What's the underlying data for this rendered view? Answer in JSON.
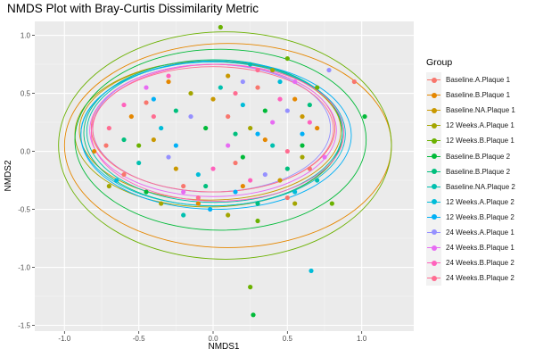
{
  "chart_data": {
    "type": "scatter",
    "title": "NMDS Plot with Bray-Curtis Dissimilarity Metric",
    "xlabel": "NMDS1",
    "ylabel": "NMDS2",
    "xlim": [
      -1.2,
      1.35
    ],
    "ylim": [
      -1.55,
      1.12
    ],
    "xticks": [
      "-1.0",
      "-0.5",
      "0.0",
      "0.5",
      "1.0"
    ],
    "xtick_values": [
      -1.0,
      -0.5,
      0.0,
      0.5,
      1.0
    ],
    "yticks": [
      "1.0",
      "0.5",
      "0.0",
      "-0.5",
      "-1.0",
      "-1.5"
    ],
    "ytick_values": [
      1.0,
      0.5,
      0.0,
      -0.5,
      -1.0,
      -1.5
    ],
    "grid": true,
    "legend_position": "right",
    "legend_title": "Group",
    "series": [
      {
        "name": "Baseline.A.Plaque 1",
        "color": "#F8766D",
        "ellipse": {
          "cx": 0.0,
          "cy": 0.2,
          "rx": 0.82,
          "ry": 0.55
        }
      },
      {
        "name": "Baseline.B.Plaque 1",
        "color": "#E58700",
        "ellipse": {
          "cx": 0.1,
          "cy": 0.05,
          "rx": 1.1,
          "ry": 0.88
        }
      },
      {
        "name": "Baseline.NA.Plaque 1",
        "color": "#C99800",
        "ellipse": {
          "cx": -0.02,
          "cy": 0.18,
          "rx": 0.88,
          "ry": 0.6
        }
      },
      {
        "name": "12 Weeks.A.Plaque 1",
        "color": "#A3A500",
        "ellipse": {
          "cx": -0.03,
          "cy": 0.15,
          "rx": 0.9,
          "ry": 0.63
        }
      },
      {
        "name": "12 Weeks.B.Plaque 1",
        "color": "#6BB100",
        "ellipse": {
          "cx": 0.08,
          "cy": 0.05,
          "rx": 1.12,
          "ry": 0.98
        }
      },
      {
        "name": "Baseline.B.Plaque 2",
        "color": "#00BA38",
        "ellipse": {
          "cx": 0.05,
          "cy": 0.1,
          "rx": 0.98,
          "ry": 0.78
        }
      },
      {
        "name": "Baseline.B.Plaque 2",
        "color": "#00BF7D",
        "ellipse": {
          "cx": 0.0,
          "cy": 0.16,
          "rx": 0.87,
          "ry": 0.63
        }
      },
      {
        "name": "Baseline.NA.Plaque 2",
        "color": "#00C0AF",
        "ellipse": {
          "cx": 0.01,
          "cy": 0.17,
          "rx": 0.86,
          "ry": 0.61
        }
      },
      {
        "name": "12 Weeks.A.Plaque 2",
        "color": "#00BCD8",
        "ellipse": {
          "cx": 0.0,
          "cy": 0.15,
          "rx": 0.89,
          "ry": 0.62
        }
      },
      {
        "name": "12 Weeks.B.Plaque 2",
        "color": "#00B0F6",
        "ellipse": {
          "cx": 0.02,
          "cy": 0.14,
          "rx": 0.91,
          "ry": 0.64
        }
      },
      {
        "name": "24 Weeks.A.Plaque 1",
        "color": "#9590FF",
        "ellipse": {
          "cx": -0.01,
          "cy": 0.2,
          "rx": 0.8,
          "ry": 0.55
        }
      },
      {
        "name": "24 Weeks.B.Plaque 1",
        "color": "#E76BF3",
        "ellipse": {
          "cx": 0.0,
          "cy": 0.18,
          "rx": 0.83,
          "ry": 0.57
        }
      },
      {
        "name": "24 Weeks.B.Plaque 2",
        "color": "#FF62BC",
        "ellipse": {
          "cx": 0.03,
          "cy": 0.16,
          "rx": 0.85,
          "ry": 0.59
        }
      },
      {
        "name": "24 Weeks.B.Plaque 2",
        "color": "#FF6C91",
        "ellipse": {
          "cx": 0.0,
          "cy": 0.19,
          "rx": 0.81,
          "ry": 0.54
        }
      }
    ],
    "points": [
      [
        -0.72,
        0.05,
        0
      ],
      [
        -0.45,
        0.42,
        0
      ],
      [
        0.1,
        0.3,
        0
      ],
      [
        0.5,
        -0.4,
        0
      ],
      [
        -0.2,
        -0.3,
        0
      ],
      [
        0.3,
        0.55,
        0
      ],
      [
        0.95,
        0.6,
        0
      ],
      [
        0.65,
        -0.15,
        0
      ],
      [
        -0.6,
        -0.2,
        0
      ],
      [
        0.15,
        -0.1,
        0
      ],
      [
        -0.55,
        0.3,
        1
      ],
      [
        0.7,
        0.2,
        1
      ],
      [
        -0.1,
        -0.45,
        1
      ],
      [
        0.35,
        0.1,
        1
      ],
      [
        -0.3,
        0.6,
        1
      ],
      [
        0.2,
        -0.3,
        1
      ],
      [
        0.55,
        0.45,
        1
      ],
      [
        -0.8,
        0.0,
        1
      ],
      [
        -0.4,
        0.1,
        2
      ],
      [
        0.0,
        0.45,
        2
      ],
      [
        0.45,
        -0.25,
        2
      ],
      [
        -0.25,
        -0.15,
        2
      ],
      [
        0.6,
        0.3,
        2
      ],
      [
        0.1,
        0.65,
        2
      ],
      [
        -0.7,
        -0.3,
        3
      ],
      [
        0.25,
        0.2,
        3
      ],
      [
        0.6,
        -0.05,
        3
      ],
      [
        -0.15,
        0.5,
        3
      ],
      [
        0.4,
        0.7,
        3
      ],
      [
        0.55,
        -0.45,
        3
      ],
      [
        -0.35,
        -0.45,
        3
      ],
      [
        0.1,
        -0.55,
        3
      ],
      [
        0.05,
        1.07,
        4
      ],
      [
        0.25,
        -1.17,
        4
      ],
      [
        0.8,
        -0.45,
        4
      ],
      [
        -0.5,
        0.05,
        4
      ],
      [
        0.3,
        -0.6,
        4
      ],
      [
        0.7,
        0.55,
        4
      ],
      [
        0.5,
        0.8,
        4
      ],
      [
        0.27,
        -1.41,
        5
      ],
      [
        -0.05,
        0.2,
        5
      ],
      [
        0.6,
        0.05,
        5
      ],
      [
        -0.45,
        -0.35,
        5
      ],
      [
        0.35,
        0.35,
        5
      ],
      [
        1.02,
        0.3,
        5
      ],
      [
        0.2,
        -0.05,
        5
      ],
      [
        -0.25,
        0.35,
        6
      ],
      [
        0.15,
        0.15,
        6
      ],
      [
        0.5,
        -0.15,
        6
      ],
      [
        -0.6,
        0.1,
        6
      ],
      [
        0.3,
        -0.45,
        6
      ],
      [
        0.65,
        0.4,
        6
      ],
      [
        -0.05,
        -0.3,
        6
      ],
      [
        -0.5,
        -0.1,
        7
      ],
      [
        0.05,
        0.55,
        7
      ],
      [
        0.4,
        0.05,
        7
      ],
      [
        -0.2,
        -0.55,
        7
      ],
      [
        0.7,
        -0.25,
        7
      ],
      [
        0.25,
        0.75,
        7
      ],
      [
        0.66,
        -1.03,
        8
      ],
      [
        -0.35,
        0.2,
        8
      ],
      [
        0.2,
        0.4,
        8
      ],
      [
        0.55,
        -0.35,
        8
      ],
      [
        -0.1,
        -0.2,
        8
      ],
      [
        0.45,
        0.6,
        8
      ],
      [
        -0.65,
        -0.25,
        8
      ],
      [
        -0.02,
        -0.5,
        9
      ],
      [
        0.3,
        0.15,
        9
      ],
      [
        -0.4,
        0.45,
        9
      ],
      [
        0.6,
        0.15,
        9
      ],
      [
        0.15,
        -0.35,
        9
      ],
      [
        -0.25,
        0.05,
        9
      ],
      [
        0.78,
        0.7,
        10
      ],
      [
        -0.3,
        -0.05,
        10
      ],
      [
        0.2,
        0.6,
        10
      ],
      [
        0.5,
        0.35,
        10
      ],
      [
        -0.15,
        0.3,
        10
      ],
      [
        0.35,
        -0.2,
        10
      ],
      [
        -0.45,
        0.55,
        11
      ],
      [
        0.1,
        0.05,
        11
      ],
      [
        0.55,
        0.6,
        11
      ],
      [
        -0.2,
        -0.35,
        11
      ],
      [
        0.4,
        0.25,
        11
      ],
      [
        0.75,
        -0.05,
        11
      ],
      [
        -0.6,
        0.4,
        12
      ],
      [
        0.0,
        -0.15,
        12
      ],
      [
        0.45,
        0.45,
        12
      ],
      [
        -0.3,
        0.65,
        12
      ],
      [
        0.25,
        -0.25,
        12
      ],
      [
        0.65,
        0.25,
        12
      ],
      [
        -0.4,
        0.3,
        13
      ],
      [
        0.15,
        0.5,
        13
      ],
      [
        0.5,
        0.0,
        13
      ],
      [
        -0.1,
        -0.4,
        13
      ],
      [
        0.3,
        0.7,
        13
      ],
      [
        -0.7,
        0.2,
        13
      ]
    ]
  }
}
